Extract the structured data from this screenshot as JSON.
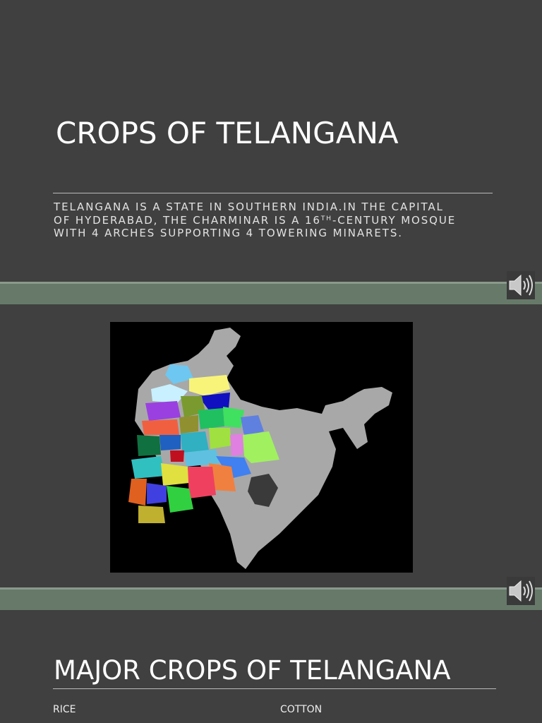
{
  "slides": [
    {
      "title": "CROPS OF TELANGANA",
      "subtitle": {
        "line_1": "TELANGANA IS A STATE IN SOUTHERN INDIA.IN THE CAPITAL",
        "line_2_start": "OF HYDERABAD, THE CHARMINAR IS A 16",
        "line_2_sup": "TH",
        "line_2_end": "-CENTURY MOSQUE",
        "line_3": "WITH 4 ARCHES SUPPORTING 4 TOWERING MINARETS."
      }
    },
    {
      "image": "map"
    },
    {
      "title": "MAJOR CROPS OF TELANGANA",
      "items": [
        "RICE",
        "COTTON"
      ]
    }
  ]
}
